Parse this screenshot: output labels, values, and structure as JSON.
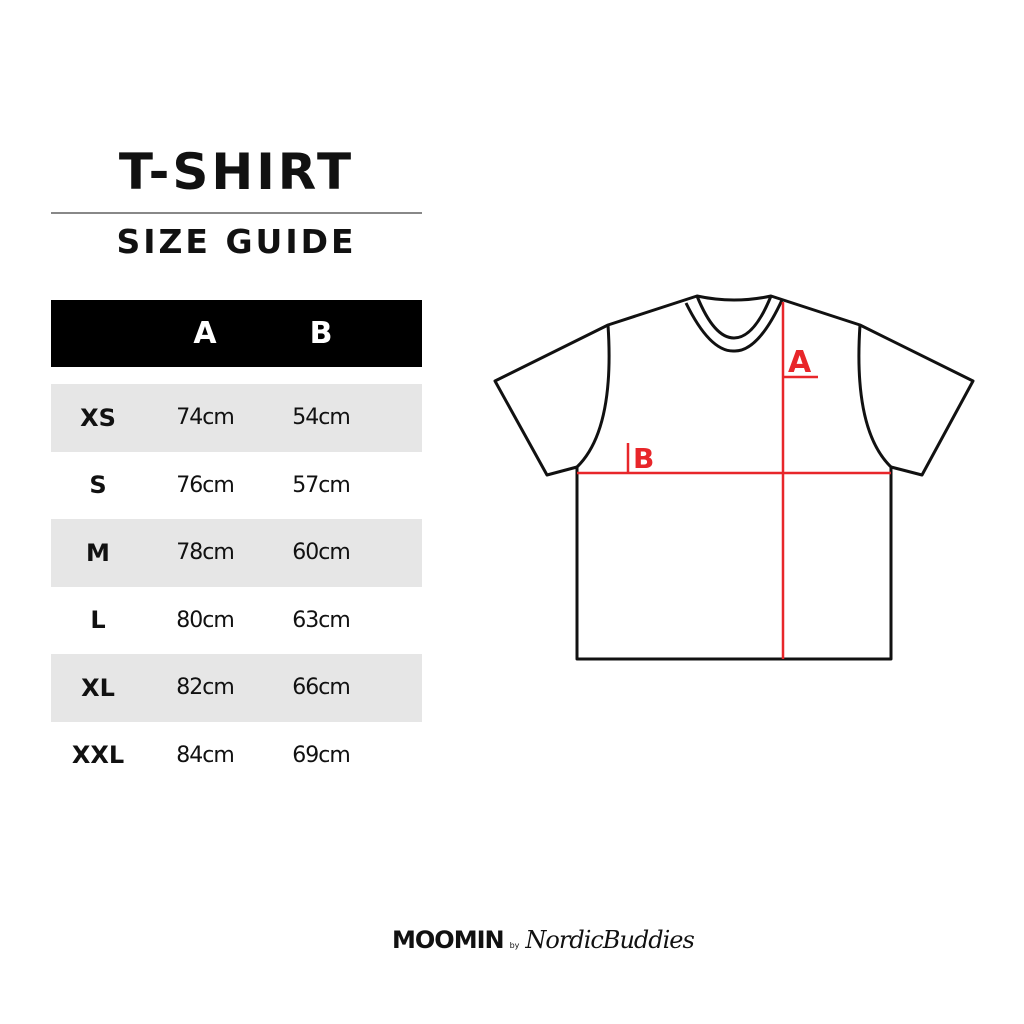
{
  "title": "T-SHIRT",
  "subtitle": "SIZE GUIDE",
  "table": {
    "headers": [
      "",
      "A",
      "B"
    ],
    "rows": [
      {
        "size": "XS",
        "a": "74cm",
        "b": "54cm"
      },
      {
        "size": "S",
        "a": "76cm",
        "b": "57cm"
      },
      {
        "size": "M",
        "a": "78cm",
        "b": "60cm"
      },
      {
        "size": "L",
        "a": "80cm",
        "b": "63cm"
      },
      {
        "size": "XL",
        "a": "82cm",
        "b": "66cm"
      },
      {
        "size": "XXL",
        "a": "84cm",
        "b": "69cm"
      }
    ]
  },
  "diagram": {
    "label_a": "A",
    "label_b": "B",
    "measure_color": "#e8262a"
  },
  "logo": {
    "brand": "MOOMIN",
    "by": "by",
    "partner": "NordicBuddies"
  }
}
